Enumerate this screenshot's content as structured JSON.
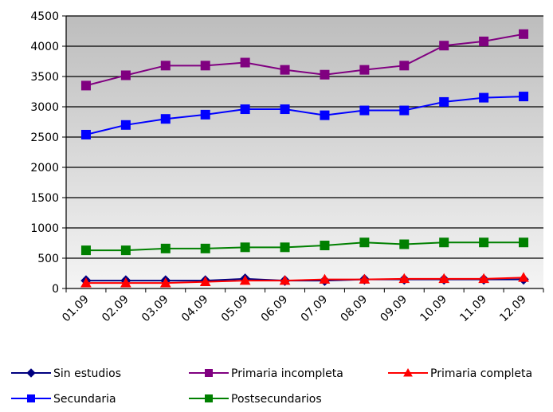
{
  "chart_data": {
    "type": "line",
    "title": "",
    "xlabel": "",
    "ylabel": "",
    "categories": [
      "01.09",
      "02.09",
      "03.09",
      "04.09",
      "05.09",
      "06.09",
      "07.09",
      "08.09",
      "09.09",
      "10.09",
      "11.09",
      "12.09"
    ],
    "ylim": [
      0,
      4500
    ],
    "yticks": [
      0,
      500,
      1000,
      1500,
      2000,
      2500,
      3000,
      3500,
      4000,
      4500
    ],
    "grid": true,
    "legend_position": "bottom",
    "series": [
      {
        "name": "Sin estudios",
        "color": "#000080",
        "marker": "diamond",
        "values": [
          130,
          130,
          130,
          130,
          160,
          130,
          130,
          150,
          150,
          150,
          150,
          150
        ]
      },
      {
        "name": "Primaria incompleta",
        "color": "#800080",
        "marker": "square",
        "values": [
          3350,
          3520,
          3680,
          3680,
          3730,
          3610,
          3530,
          3610,
          3680,
          4010,
          4080,
          4200
        ]
      },
      {
        "name": "Primaria completa",
        "color": "#ff0000",
        "marker": "triangle",
        "values": [
          90,
          90,
          90,
          110,
          130,
          130,
          150,
          150,
          160,
          160,
          160,
          180
        ]
      },
      {
        "name": "Secundaria",
        "color": "#0000ff",
        "marker": "square",
        "values": [
          2540,
          2700,
          2800,
          2870,
          2960,
          2960,
          2860,
          2940,
          2940,
          3080,
          3150,
          3170
        ]
      },
      {
        "name": "Postsecundarios",
        "color": "#008000",
        "marker": "square",
        "values": [
          630,
          630,
          660,
          660,
          680,
          680,
          710,
          760,
          730,
          760,
          760,
          760
        ]
      }
    ]
  }
}
